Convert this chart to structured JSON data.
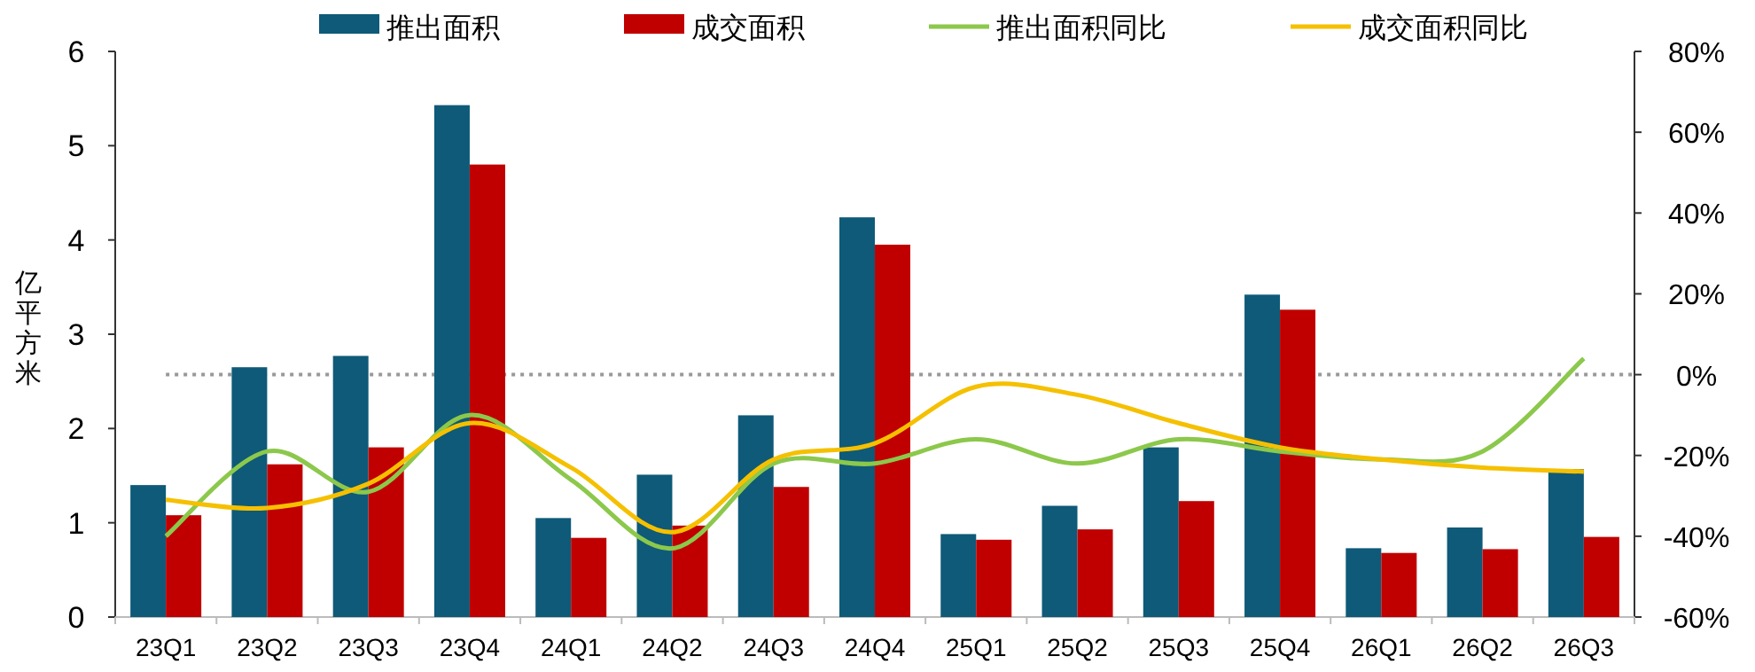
{
  "chart_data": {
    "type": "bar",
    "ylabel": "亿平方米",
    "legend": "top",
    "grid": false,
    "categories": [
      "23Q1",
      "23Q2",
      "23Q3",
      "23Q4",
      "24Q1",
      "24Q2",
      "24Q3",
      "24Q4",
      "25Q1",
      "25Q2",
      "25Q3",
      "25Q4",
      "26Q1",
      "26Q2",
      "26Q3"
    ],
    "series": [
      {
        "name": "推出面积",
        "color": "#0e5a78",
        "values": [
          1.4,
          2.65,
          2.77,
          5.43,
          1.05,
          1.51,
          2.14,
          4.24,
          0.88,
          1.18,
          1.8,
          3.42,
          0.73,
          0.95,
          1.57
        ]
      },
      {
        "name": "成交面积",
        "color": "#c00000",
        "values": [
          1.08,
          1.62,
          1.8,
          4.8,
          0.84,
          0.97,
          1.38,
          3.95,
          0.82,
          0.93,
          1.23,
          3.26,
          0.68,
          0.72,
          0.85
        ]
      },
      {
        "name": "推出面积同比",
        "type": "line",
        "axis": "y2",
        "color": "#8cc84b",
        "values": [
          -40,
          -19,
          -29,
          -10,
          -26,
          -43,
          -22,
          -22,
          -16,
          -22,
          -16,
          -19,
          -21,
          -19,
          4
        ]
      },
      {
        "name": "成交面积同比",
        "type": "line",
        "axis": "y2",
        "color": "#f5c000",
        "values": [
          -31,
          -33,
          -27,
          -12,
          -23,
          -39,
          -21,
          -17,
          -3,
          -5,
          -12,
          -18,
          -21,
          -23,
          -24
        ]
      }
    ],
    "ylim": [
      0,
      6
    ],
    "yticks": [
      0,
      1,
      2,
      3,
      4,
      5,
      6
    ],
    "y2lim": [
      -60,
      80
    ],
    "y2ticks": [
      {
        "value": -60,
        "label": "-60%"
      },
      {
        "value": -40,
        "label": "-40%"
      },
      {
        "value": -20,
        "label": "-20%"
      },
      {
        "value": 0,
        "label": "0%"
      },
      {
        "value": 20,
        "label": "20%"
      },
      {
        "value": 40,
        "label": "40%"
      },
      {
        "value": 60,
        "label": "60%"
      },
      {
        "value": 80,
        "label": "80%"
      }
    ],
    "ref_lines": [
      {
        "axis": "y2",
        "value": 0,
        "color": "#999999",
        "line_style": "dotted"
      }
    ]
  }
}
